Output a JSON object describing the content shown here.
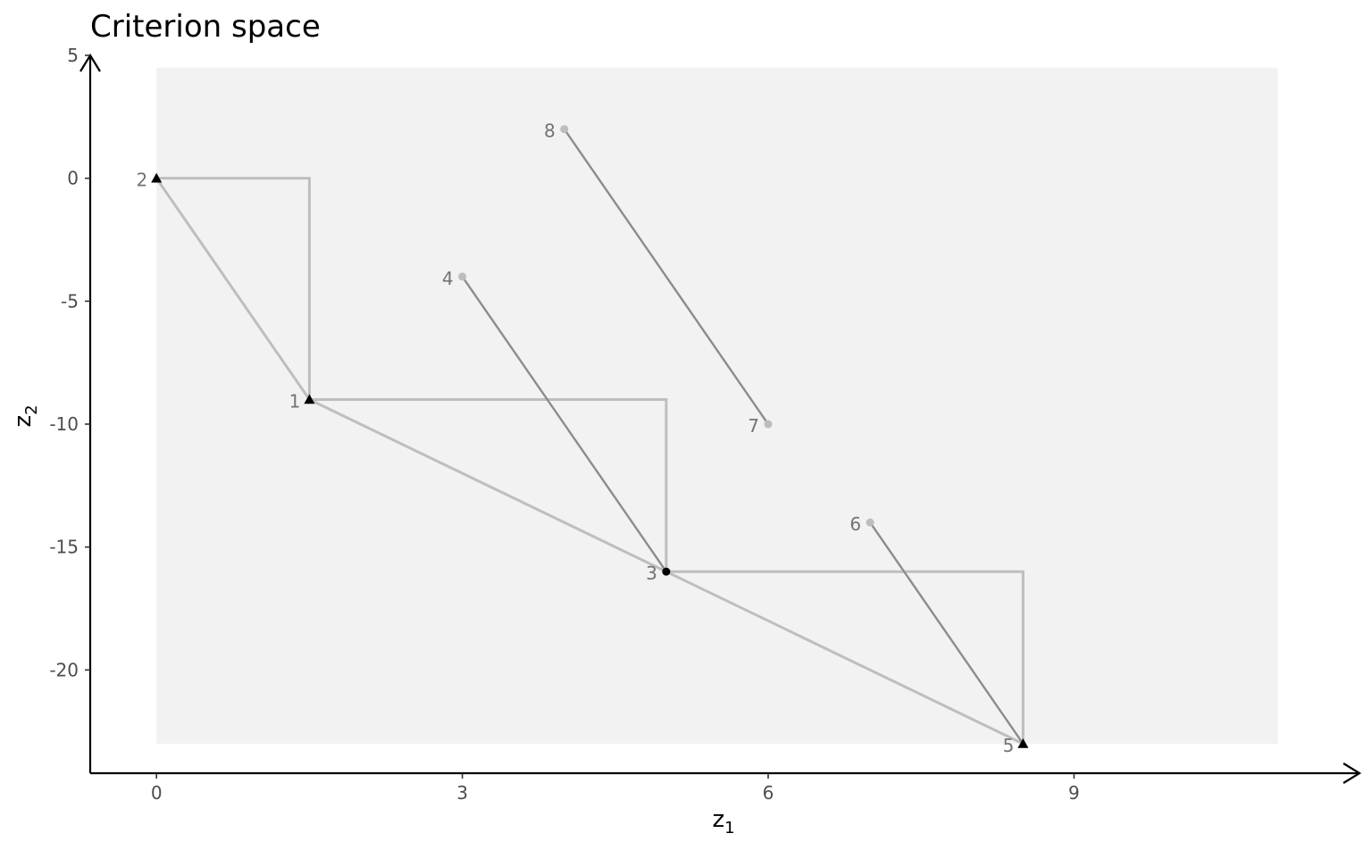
{
  "chart_data": {
    "type": "scatter",
    "title": "Criterion space",
    "xlabel": {
      "main": "z",
      "sub": "1"
    },
    "ylabel": {
      "main": "z",
      "sub": "2"
    },
    "xlim": [
      -0.65,
      11.8
    ],
    "ylim": [
      -24.2,
      5.0
    ],
    "xticks": [
      0,
      3,
      6,
      9
    ],
    "yticks": [
      5,
      0,
      -5,
      -10,
      -15,
      -20
    ],
    "shaded_region": {
      "x": [
        0,
        11
      ],
      "y": [
        -23,
        4.5
      ],
      "color": "#f2f2f2"
    },
    "points": [
      {
        "label": "1",
        "x": 1.5,
        "y": -9,
        "marker": "triangle",
        "color": "#000000"
      },
      {
        "label": "2",
        "x": 0,
        "y": 0,
        "marker": "triangle",
        "color": "#000000"
      },
      {
        "label": "3",
        "x": 5,
        "y": -16,
        "marker": "circle",
        "color": "#000000"
      },
      {
        "label": "4",
        "x": 3,
        "y": -4,
        "marker": "circle",
        "color": "#bdbdbd"
      },
      {
        "label": "5",
        "x": 8.5,
        "y": -23,
        "marker": "triangle",
        "color": "#000000"
      },
      {
        "label": "6",
        "x": 7,
        "y": -14,
        "marker": "circle",
        "color": "#bdbdbd"
      },
      {
        "label": "7",
        "x": 6,
        "y": -10,
        "marker": "circle",
        "color": "#bdbdbd"
      },
      {
        "label": "8",
        "x": 4,
        "y": 2,
        "marker": "circle",
        "color": "#bdbdbd"
      }
    ],
    "hull_polygon": [
      [
        0,
        0
      ],
      [
        1.5,
        -9
      ],
      [
        5,
        -16
      ],
      [
        8.5,
        -23
      ]
    ],
    "staircase": [
      [
        0,
        0
      ],
      [
        1.5,
        0
      ],
      [
        1.5,
        -9
      ],
      [
        5,
        -9
      ],
      [
        5,
        -16
      ],
      [
        8.5,
        -16
      ],
      [
        8.5,
        -23
      ]
    ],
    "segments": [
      {
        "from": [
          3,
          -4
        ],
        "to": [
          5,
          -16
        ]
      },
      {
        "from": [
          4,
          2
        ],
        "to": [
          6,
          -10
        ]
      },
      {
        "from": [
          7,
          -14
        ],
        "to": [
          8.5,
          -23
        ]
      }
    ],
    "colors": {
      "region": "#f2f2f2",
      "hull": "#bebebe",
      "segment": "#8c8c8c",
      "axis": "#000000"
    }
  }
}
